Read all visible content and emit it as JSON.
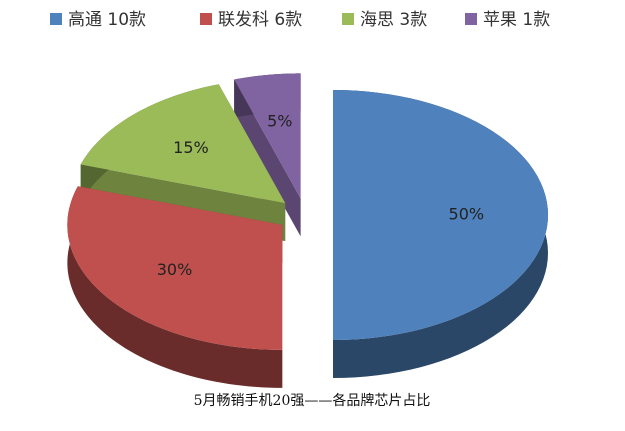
{
  "chart_data": {
    "type": "pie",
    "title": "5月畅销手机20强——各品牌芯片占比",
    "categories": [
      "高通 10款",
      "联发科 6款",
      "海思 3款",
      "苹果 1款"
    ],
    "values": [
      50,
      30,
      15,
      5
    ],
    "value_labels": [
      "50%",
      "30%",
      "15%",
      "5%"
    ],
    "colors": [
      "#4f81bd",
      "#c0504d",
      "#9bbb59",
      "#8064a2"
    ],
    "legend": "top"
  }
}
